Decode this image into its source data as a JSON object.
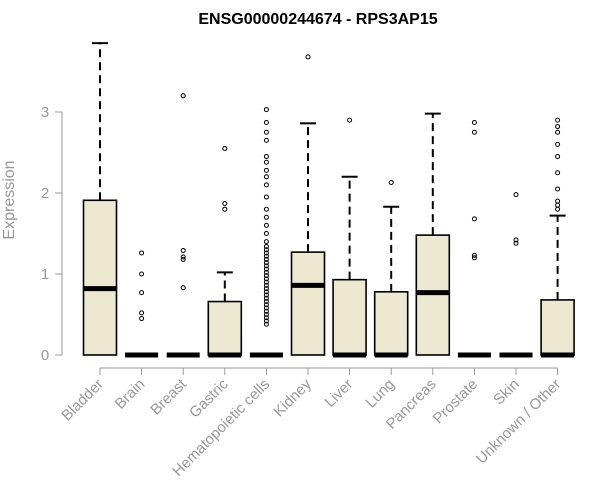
{
  "chart_data": {
    "type": "boxplot",
    "title": "ENSG00000244674 - RPS3AP15",
    "xlabel": "",
    "ylabel": "Expression",
    "ylim": [
      0,
      3.9
    ],
    "yticks": [
      0,
      1,
      2,
      3
    ],
    "grid": false,
    "colors": {
      "box_fill": "#ede8d0",
      "box_stroke": "#000000",
      "outlier_stroke": "#000000",
      "axis": "#999999"
    },
    "categories": [
      "Bladder",
      "Brain",
      "Breast",
      "Gastric",
      "Hematopoietic cells",
      "Kidney",
      "Liver",
      "Lung",
      "Pancreas",
      "Prostate",
      "Skin",
      "Unknown / Other"
    ],
    "boxes": [
      {
        "category": "Bladder",
        "min": 0,
        "q1": 0,
        "median": 0.82,
        "q3": 1.91,
        "max": 3.85,
        "outliers": []
      },
      {
        "category": "Brain",
        "min": 0,
        "q1": 0,
        "median": 0,
        "q3": 0,
        "max": 0,
        "outliers": [
          0.45,
          0.52,
          0.77,
          1.0,
          1.26
        ]
      },
      {
        "category": "Breast",
        "min": 0,
        "q1": 0,
        "median": 0,
        "q3": 0,
        "max": 0,
        "outliers": [
          0.83,
          1.18,
          1.21,
          1.29,
          3.2
        ]
      },
      {
        "category": "Gastric",
        "min": 0,
        "q1": 0,
        "median": 0,
        "q3": 0.66,
        "max": 1.02,
        "outliers": [
          1.8,
          1.87,
          2.55
        ]
      },
      {
        "category": "Hematopoietic cells",
        "min": 0,
        "q1": 0,
        "median": 0,
        "q3": 0,
        "max": 0,
        "outliers": [
          0.38,
          0.42,
          0.46,
          0.5,
          0.54,
          0.58,
          0.62,
          0.66,
          0.7,
          0.74,
          0.78,
          0.82,
          0.86,
          0.9,
          0.94,
          0.98,
          1.02,
          1.06,
          1.1,
          1.14,
          1.18,
          1.22,
          1.26,
          1.3,
          1.34,
          1.4,
          1.5,
          1.6,
          1.7,
          1.8,
          1.95,
          2.1,
          2.2,
          2.28,
          2.38,
          2.45,
          2.65,
          2.75,
          2.87,
          3.03
        ]
      },
      {
        "category": "Kidney",
        "min": 0,
        "q1": 0,
        "median": 0.86,
        "q3": 1.27,
        "max": 2.86,
        "outliers": [
          3.68
        ]
      },
      {
        "category": "Liver",
        "min": 0,
        "q1": 0,
        "median": 0,
        "q3": 0.93,
        "max": 2.2,
        "outliers": [
          2.9
        ]
      },
      {
        "category": "Lung",
        "min": 0,
        "q1": 0,
        "median": 0,
        "q3": 0.78,
        "max": 1.83,
        "outliers": [
          2.13
        ]
      },
      {
        "category": "Pancreas",
        "min": 0,
        "q1": 0,
        "median": 0.77,
        "q3": 1.48,
        "max": 2.98,
        "outliers": []
      },
      {
        "category": "Prostate",
        "min": 0,
        "q1": 0,
        "median": 0,
        "q3": 0,
        "max": 0,
        "outliers": [
          1.2,
          1.23,
          1.68,
          2.75,
          2.87
        ]
      },
      {
        "category": "Skin",
        "min": 0,
        "q1": 0,
        "median": 0,
        "q3": 0,
        "max": 0,
        "outliers": [
          1.38,
          1.42,
          1.98
        ]
      },
      {
        "category": "Unknown / Other",
        "min": 0,
        "q1": 0,
        "median": 0,
        "q3": 0.68,
        "max": 1.72,
        "outliers": [
          1.8,
          1.85,
          1.9,
          2.05,
          2.25,
          2.45,
          2.6,
          2.75,
          2.82,
          2.9
        ]
      }
    ]
  }
}
